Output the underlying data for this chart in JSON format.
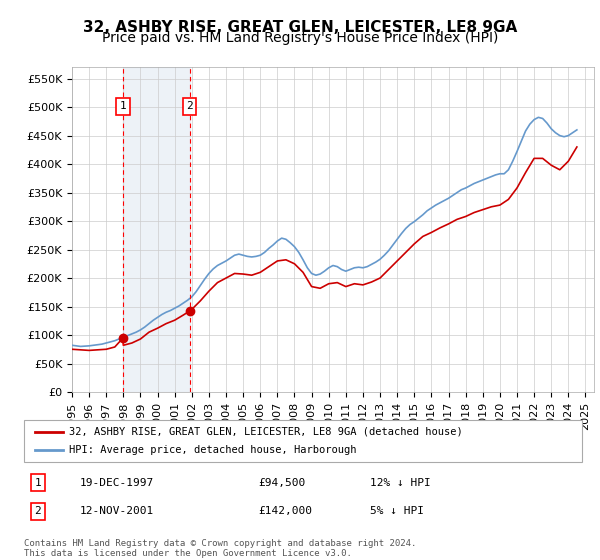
{
  "title": "32, ASHBY RISE, GREAT GLEN, LEICESTER, LE8 9GA",
  "subtitle": "Price paid vs. HM Land Registry's House Price Index (HPI)",
  "ylabel": "",
  "xlabel": "",
  "ylim": [
    0,
    570000
  ],
  "yticks": [
    0,
    50000,
    100000,
    150000,
    200000,
    250000,
    300000,
    350000,
    400000,
    450000,
    500000,
    550000
  ],
  "ytick_labels": [
    "£0",
    "£50K",
    "£100K",
    "£150K",
    "£200K",
    "£250K",
    "£300K",
    "£350K",
    "£400K",
    "£450K",
    "£500K",
    "£550K"
  ],
  "xlim_start": 1995.0,
  "xlim_end": 2025.5,
  "background_color": "#ffffff",
  "plot_bg_color": "#ffffff",
  "grid_color": "#cccccc",
  "transaction1_x": 1997.97,
  "transaction1_y": 94500,
  "transaction1_label": "1",
  "transaction1_date": "19-DEC-1997",
  "transaction1_price": "£94,500",
  "transaction1_hpi": "12% ↓ HPI",
  "transaction2_x": 2001.87,
  "transaction2_y": 142000,
  "transaction2_label": "2",
  "transaction2_date": "12-NOV-2001",
  "transaction2_price": "£142,000",
  "transaction2_hpi": "5% ↓ HPI",
  "shade_color": "#dce6f1",
  "shade_alpha": 0.5,
  "line1_color": "#cc0000",
  "line2_color": "#6699cc",
  "legend1_label": "32, ASHBY RISE, GREAT GLEN, LEICESTER, LE8 9GA (detached house)",
  "legend2_label": "HPI: Average price, detached house, Harborough",
  "footer": "Contains HM Land Registry data © Crown copyright and database right 2024.\nThis data is licensed under the Open Government Licence v3.0.",
  "title_fontsize": 11,
  "subtitle_fontsize": 10,
  "tick_fontsize": 8,
  "hpi_data_x": [
    1995.0,
    1995.25,
    1995.5,
    1995.75,
    1996.0,
    1996.25,
    1996.5,
    1996.75,
    1997.0,
    1997.25,
    1997.5,
    1997.75,
    1998.0,
    1998.25,
    1998.5,
    1998.75,
    1999.0,
    1999.25,
    1999.5,
    1999.75,
    2000.0,
    2000.25,
    2000.5,
    2000.75,
    2001.0,
    2001.25,
    2001.5,
    2001.75,
    2002.0,
    2002.25,
    2002.5,
    2002.75,
    2003.0,
    2003.25,
    2003.5,
    2003.75,
    2004.0,
    2004.25,
    2004.5,
    2004.75,
    2005.0,
    2005.25,
    2005.5,
    2005.75,
    2006.0,
    2006.25,
    2006.5,
    2006.75,
    2007.0,
    2007.25,
    2007.5,
    2007.75,
    2008.0,
    2008.25,
    2008.5,
    2008.75,
    2009.0,
    2009.25,
    2009.5,
    2009.75,
    2010.0,
    2010.25,
    2010.5,
    2010.75,
    2011.0,
    2011.25,
    2011.5,
    2011.75,
    2012.0,
    2012.25,
    2012.5,
    2012.75,
    2013.0,
    2013.25,
    2013.5,
    2013.75,
    2014.0,
    2014.25,
    2014.5,
    2014.75,
    2015.0,
    2015.25,
    2015.5,
    2015.75,
    2016.0,
    2016.25,
    2016.5,
    2016.75,
    2017.0,
    2017.25,
    2017.5,
    2017.75,
    2018.0,
    2018.25,
    2018.5,
    2018.75,
    2019.0,
    2019.25,
    2019.5,
    2019.75,
    2020.0,
    2020.25,
    2020.5,
    2020.75,
    2021.0,
    2021.25,
    2021.5,
    2021.75,
    2022.0,
    2022.25,
    2022.5,
    2022.75,
    2023.0,
    2023.25,
    2023.5,
    2023.75,
    2024.0,
    2024.25,
    2024.5
  ],
  "hpi_data_y": [
    82000,
    81000,
    80000,
    80500,
    81000,
    82000,
    83000,
    84000,
    86000,
    88000,
    90000,
    93000,
    96000,
    99000,
    102000,
    105000,
    109000,
    114000,
    120000,
    126000,
    131000,
    136000,
    140000,
    143000,
    147000,
    151000,
    156000,
    161000,
    167000,
    176000,
    187000,
    198000,
    208000,
    216000,
    222000,
    226000,
    230000,
    235000,
    240000,
    242000,
    240000,
    238000,
    237000,
    238000,
    240000,
    245000,
    252000,
    258000,
    265000,
    270000,
    268000,
    262000,
    255000,
    245000,
    232000,
    218000,
    208000,
    205000,
    207000,
    212000,
    218000,
    222000,
    220000,
    215000,
    212000,
    215000,
    218000,
    219000,
    218000,
    220000,
    224000,
    228000,
    233000,
    240000,
    248000,
    258000,
    268000,
    278000,
    287000,
    294000,
    299000,
    305000,
    311000,
    318000,
    323000,
    328000,
    332000,
    336000,
    340000,
    345000,
    350000,
    355000,
    358000,
    362000,
    366000,
    369000,
    372000,
    375000,
    378000,
    381000,
    383000,
    383000,
    390000,
    405000,
    422000,
    440000,
    458000,
    470000,
    478000,
    482000,
    480000,
    472000,
    462000,
    455000,
    450000,
    448000,
    450000,
    455000,
    460000
  ],
  "price_data_x": [
    1995.0,
    1995.5,
    1996.0,
    1996.5,
    1997.0,
    1997.5,
    1997.97,
    1998.0,
    1998.5,
    1999.0,
    1999.5,
    2000.0,
    2000.5,
    2001.0,
    2001.5,
    2001.87,
    2002.0,
    2002.5,
    2003.0,
    2003.5,
    2004.0,
    2004.5,
    2005.0,
    2005.5,
    2006.0,
    2006.5,
    2007.0,
    2007.5,
    2008.0,
    2008.5,
    2009.0,
    2009.5,
    2010.0,
    2010.5,
    2011.0,
    2011.5,
    2012.0,
    2012.5,
    2013.0,
    2013.5,
    2014.0,
    2014.5,
    2015.0,
    2015.5,
    2016.0,
    2016.5,
    2017.0,
    2017.5,
    2018.0,
    2018.5,
    2019.0,
    2019.5,
    2020.0,
    2020.5,
    2021.0,
    2021.5,
    2022.0,
    2022.5,
    2023.0,
    2023.5,
    2024.0,
    2024.5
  ],
  "price_data_y": [
    75000,
    74000,
    73000,
    74000,
    75000,
    79000,
    94500,
    82000,
    86000,
    93000,
    105000,
    112000,
    120000,
    126000,
    135000,
    142000,
    145000,
    160000,
    177000,
    192000,
    200000,
    208000,
    207000,
    205000,
    210000,
    220000,
    230000,
    232000,
    225000,
    210000,
    185000,
    182000,
    190000,
    192000,
    185000,
    190000,
    188000,
    193000,
    200000,
    215000,
    230000,
    245000,
    260000,
    273000,
    280000,
    288000,
    295000,
    303000,
    308000,
    315000,
    320000,
    325000,
    328000,
    338000,
    358000,
    385000,
    410000,
    410000,
    398000,
    390000,
    405000,
    430000
  ]
}
